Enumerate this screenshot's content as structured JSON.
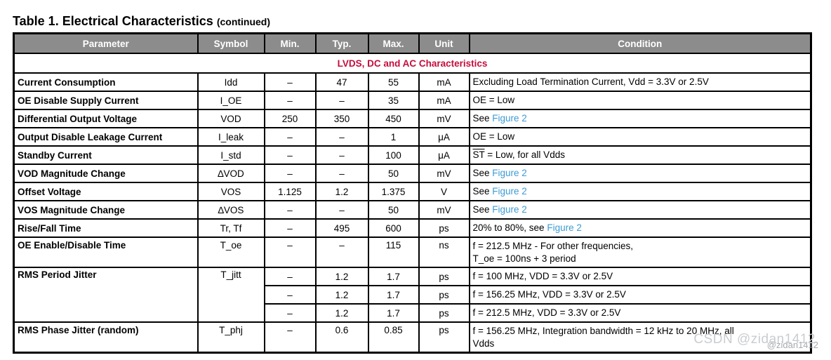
{
  "page": {
    "title": "Table 1. Electrical Characteristics",
    "title_suffix": "(continued)",
    "watermark": "CSDN @zidan1412",
    "watermark_secondary": "@zidan1412"
  },
  "colors": {
    "header_bg": "#8C8C8C",
    "header_text": "#FFFFFF",
    "section_text": "#C40D3C",
    "figure_link": "#3D9BD5",
    "border": "#000000",
    "watermark": "#C9CDD1"
  },
  "table": {
    "columns": [
      "Parameter",
      "Symbol",
      "Min.",
      "Typ.",
      "Max.",
      "Unit",
      "Condition"
    ],
    "section": "LVDS, DC and AC Characteristics",
    "rows": [
      {
        "parameter": "Current Consumption",
        "symbol": "Idd",
        "min": "–",
        "typ": "47",
        "max": "55",
        "unit": "mA",
        "condition": [
          {
            "text": "Excluding Load Termination Current, Vdd = 3.3V or 2.5V"
          }
        ]
      },
      {
        "parameter": "OE Disable Supply Current",
        "symbol": "I_OE",
        "min": "–",
        "typ": "–",
        "max": "35",
        "unit": "mA",
        "condition": [
          {
            "text": "OE = Low"
          }
        ]
      },
      {
        "parameter": "Differential Output Voltage",
        "symbol": "VOD",
        "min": "250",
        "typ": "350",
        "max": "450",
        "unit": "mV",
        "condition": [
          {
            "text": "See "
          },
          {
            "text": "Figure 2",
            "link": true
          }
        ]
      },
      {
        "parameter": "Output Disable Leakage Current",
        "symbol": "I_leak",
        "min": "–",
        "typ": "–",
        "max": "1",
        "unit": "μA",
        "condition": [
          {
            "text": "OE = Low"
          }
        ]
      },
      {
        "parameter": "Standby Current",
        "symbol": "I_std",
        "min": "–",
        "typ": "–",
        "max": "100",
        "unit": "μA",
        "condition": [
          {
            "text": "ST",
            "overline": true
          },
          {
            "text": " = Low, for all Vdds"
          }
        ]
      },
      {
        "parameter": "VOD Magnitude Change",
        "symbol": "∆VOD",
        "min": "–",
        "typ": "–",
        "max": "50",
        "unit": "mV",
        "condition": [
          {
            "text": "See "
          },
          {
            "text": "Figure 2",
            "link": true
          }
        ]
      },
      {
        "parameter": "Offset Voltage",
        "symbol": "VOS",
        "min": "1.125",
        "typ": "1.2",
        "max": "1.375",
        "unit": "V",
        "condition": [
          {
            "text": "See "
          },
          {
            "text": "Figure 2",
            "link": true
          }
        ]
      },
      {
        "parameter": "VOS Magnitude Change",
        "symbol": "∆VOS",
        "min": "–",
        "typ": "–",
        "max": "50",
        "unit": "mV",
        "condition": [
          {
            "text": "See "
          },
          {
            "text": "Figure 2",
            "link": true
          }
        ]
      },
      {
        "parameter": "Rise/Fall Time",
        "symbol": "Tr, Tf",
        "min": "–",
        "typ": "495",
        "max": "600",
        "unit": "ps",
        "condition": [
          {
            "text": "20% to 80%, see "
          },
          {
            "text": "Figure 2",
            "link": true
          }
        ]
      },
      {
        "parameter": "OE Enable/Disable Time",
        "symbol": "T_oe",
        "min": "–",
        "typ": "–",
        "max": "115",
        "unit": "ns",
        "tall": true,
        "condition": [
          {
            "text": "f = 212.5 MHz - For other frequencies,\nT_oe = 100ns + 3 period"
          }
        ]
      },
      {
        "parameter": "RMS Period Jitter",
        "symbol": "T_jitt",
        "rowspan": 3,
        "min": "–",
        "typ": "1.2",
        "max": "1.7",
        "unit": "ps",
        "condition": [
          {
            "text": "f = 100 MHz, VDD = 3.3V or 2.5V"
          }
        ]
      },
      {
        "sub": true,
        "min": "–",
        "typ": "1.2",
        "max": "1.7",
        "unit": "ps",
        "condition": [
          {
            "text": "f = 156.25 MHz, VDD = 3.3V or 2.5V"
          }
        ]
      },
      {
        "sub": true,
        "min": "–",
        "typ": "1.2",
        "max": "1.7",
        "unit": "ps",
        "condition": [
          {
            "text": "f = 212.5 MHz, VDD = 3.3V or 2.5V"
          }
        ]
      },
      {
        "parameter": "RMS Phase Jitter (random)",
        "symbol": "T_phj",
        "min": "–",
        "typ": "0.6",
        "max": "0.85",
        "unit": "ps",
        "tall": true,
        "condition": [
          {
            "text": "f = 156.25 MHz, Integration bandwidth = 12 kHz to 20 MHz, all\nVdds"
          }
        ]
      }
    ]
  }
}
